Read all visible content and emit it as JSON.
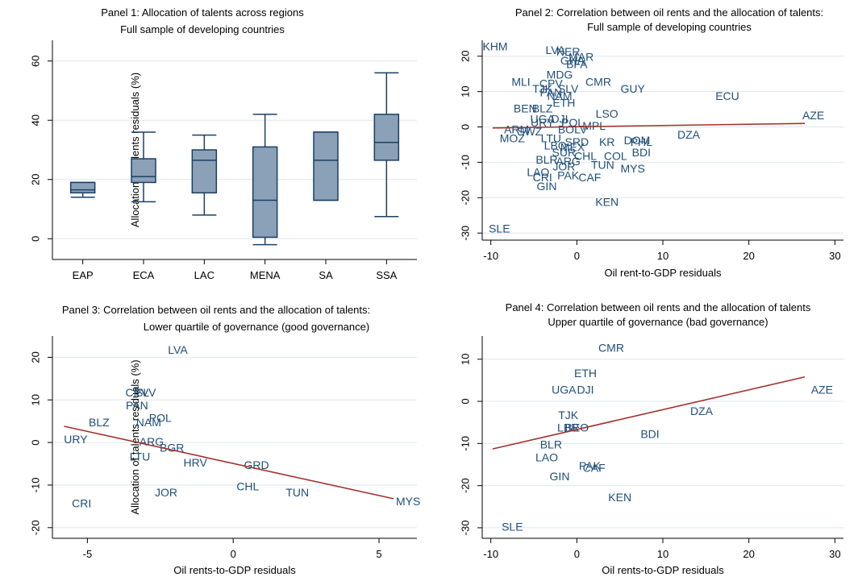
{
  "colors": {
    "background": "#ffffff",
    "grid": "#dfe6ec",
    "axis": "#000000",
    "label": "#1f4e79",
    "box_fill": "#8aa1b8",
    "box_stroke": "#1a3f66",
    "fit_line": "#a3312b"
  },
  "chart_data": [
    {
      "type": "box",
      "title": "Panel 1: Allocation of talents across regions",
      "subtitle": "Full sample of developing countries",
      "xlabel": "",
      "ylabel": "Allocation of talents residuals (%)",
      "ylim": [
        -7,
        67
      ],
      "yticks": [
        0,
        20,
        40,
        60
      ],
      "grid": true,
      "categories": [
        "EAP",
        "ECA",
        "LAC",
        "MENA",
        "SA",
        "SSA"
      ],
      "boxes": [
        {
          "category": "EAP",
          "min": 14,
          "q1": 15.5,
          "median": 16.5,
          "q3": 19,
          "max": 19
        },
        {
          "category": "ECA",
          "min": 12.5,
          "q1": 19,
          "median": 21,
          "q3": 27,
          "max": 36
        },
        {
          "category": "LAC",
          "min": 8,
          "q1": 15.5,
          "median": 26.5,
          "q3": 30,
          "max": 35
        },
        {
          "category": "MENA",
          "min": -2,
          "q1": 0.5,
          "median": 13,
          "q3": 31,
          "max": 42
        },
        {
          "category": "SA",
          "min": 13,
          "q1": 13,
          "median": 26.5,
          "q3": 36,
          "max": 36
        },
        {
          "category": "SSA",
          "min": 7.5,
          "q1": 26.5,
          "median": 32.5,
          "q3": 42,
          "max": 56
        }
      ]
    },
    {
      "type": "scatter",
      "title": "Panel 2: Correlation between oil rents and the allocation of talents:",
      "subtitle": "Full sample of developing countries",
      "xlabel": "Oil rent-to-GDP residuals",
      "ylabel": "",
      "xlim": [
        -11,
        31
      ],
      "ylim": [
        -32,
        24.5
      ],
      "xticks": [
        -10,
        0,
        10,
        20,
        30
      ],
      "yticks": [
        -30,
        -20,
        -10,
        0,
        10,
        20
      ],
      "grid": true,
      "fit_line": [
        [
          -9.8,
          -0.3
        ],
        [
          26.5,
          1.0
        ]
      ],
      "points": [
        {
          "label": "KHM",
          "x": -9.5,
          "y": 22.5
        },
        {
          "label": "LVA",
          "x": -2.5,
          "y": 21.5
        },
        {
          "label": "NER",
          "x": -1,
          "y": 21
        },
        {
          "label": "MAR",
          "x": 0.5,
          "y": 19.5
        },
        {
          "label": "GHA",
          "x": -0.5,
          "y": 18.5
        },
        {
          "label": "BFA",
          "x": 0,
          "y": 17.5
        },
        {
          "label": "MDG",
          "x": -2,
          "y": 14.5
        },
        {
          "label": "MLI",
          "x": -6.5,
          "y": 12.5
        },
        {
          "label": "CPV",
          "x": -3,
          "y": 12
        },
        {
          "label": "CMR",
          "x": 2.5,
          "y": 12.5
        },
        {
          "label": "TJK",
          "x": -4,
          "y": 10.5
        },
        {
          "label": "SLV",
          "x": -1,
          "y": 10.5
        },
        {
          "label": "GUY",
          "x": 6.5,
          "y": 10.5
        },
        {
          "label": "PAN",
          "x": -3,
          "y": 9.5
        },
        {
          "label": "NAM",
          "x": -2,
          "y": 8.5
        },
        {
          "label": "ECU",
          "x": 17.5,
          "y": 8.5
        },
        {
          "label": "ETH",
          "x": -1.5,
          "y": 6.5
        },
        {
          "label": "BEN",
          "x": -6,
          "y": 5
        },
        {
          "label": "BLZ",
          "x": -4,
          "y": 5
        },
        {
          "label": "LSO",
          "x": 3.5,
          "y": 3.5
        },
        {
          "label": "AZE",
          "x": 27.5,
          "y": 3.0
        },
        {
          "label": "UGA",
          "x": -4,
          "y": 2
        },
        {
          "label": "DJI",
          "x": -2,
          "y": 2
        },
        {
          "label": "URY",
          "x": -4,
          "y": 1
        },
        {
          "label": "POL",
          "x": -0.5,
          "y": 1
        },
        {
          "label": "MPL",
          "x": 2,
          "y": 0
        },
        {
          "label": "BOLV",
          "x": -0.5,
          "y": -1
        },
        {
          "label": "ARM",
          "x": -7,
          "y": -1
        },
        {
          "label": "SWZ",
          "x": -5.5,
          "y": -1.5
        },
        {
          "label": "MOZ",
          "x": -7.5,
          "y": -3.5
        },
        {
          "label": "LTU",
          "x": -3,
          "y": -3.5
        },
        {
          "label": "DZA",
          "x": 13,
          "y": -2.5
        },
        {
          "label": "DOM",
          "x": 7,
          "y": -4
        },
        {
          "label": "PHL",
          "x": 7.5,
          "y": -4.5
        },
        {
          "label": "KR",
          "x": 3.5,
          "y": -4.5
        },
        {
          "label": "SRD",
          "x": 0,
          "y": -4.5
        },
        {
          "label": "MEX",
          "x": -0.5,
          "y": -6
        },
        {
          "label": "LBO",
          "x": -2.5,
          "y": -5.5
        },
        {
          "label": "BDI",
          "x": 7.5,
          "y": -7.5
        },
        {
          "label": "SUR",
          "x": -1.5,
          "y": -7.5
        },
        {
          "label": "COL",
          "x": 4.5,
          "y": -8.5
        },
        {
          "label": "CHL",
          "x": 1,
          "y": -8.5
        },
        {
          "label": "BLR",
          "x": -3.5,
          "y": -9.5
        },
        {
          "label": "ARG",
          "x": -1,
          "y": -10
        },
        {
          "label": "TUN",
          "x": 3,
          "y": -11
        },
        {
          "label": "MYS",
          "x": 6.5,
          "y": -12
        },
        {
          "label": "JOR",
          "x": -1.5,
          "y": -11.5
        },
        {
          "label": "LAO",
          "x": -4.5,
          "y": -13
        },
        {
          "label": "CRI",
          "x": -4,
          "y": -14.5
        },
        {
          "label": "PAK",
          "x": -1,
          "y": -14
        },
        {
          "label": "CAF",
          "x": 1.5,
          "y": -14.5
        },
        {
          "label": "GIN",
          "x": -3.5,
          "y": -17
        },
        {
          "label": "KEN",
          "x": 3.5,
          "y": -21.5
        },
        {
          "label": "SLE",
          "x": -9,
          "y": -29
        }
      ]
    },
    {
      "type": "scatter",
      "title": "Panel 3: Correlation between oil rents and the allocation of talents:",
      "subtitle": "Lower quartile of governance (good governance)",
      "xlabel": "Oil rents-to-GDP residuals",
      "ylabel": "Allocation of talents residuals (%)",
      "xlim": [
        -6.2,
        6.3
      ],
      "ylim": [
        -22.5,
        25
      ],
      "xticks": [
        -5,
        0,
        5
      ],
      "yticks": [
        -20,
        -10,
        0,
        10,
        20
      ],
      "grid": true,
      "fit_line": [
        [
          -5.8,
          3.8
        ],
        [
          5.5,
          -13.2
        ]
      ],
      "points": [
        {
          "label": "LVA",
          "x": -1.9,
          "y": 21.5
        },
        {
          "label": "CPV",
          "x": -3.3,
          "y": 11.5
        },
        {
          "label": "SLV",
          "x": -3.0,
          "y": 11.5
        },
        {
          "label": "PAN",
          "x": -3.3,
          "y": 8.5
        },
        {
          "label": "POL",
          "x": -2.5,
          "y": 5.5
        },
        {
          "label": "NAM",
          "x": -2.9,
          "y": 4.5
        },
        {
          "label": "BLZ",
          "x": -4.6,
          "y": 4.5
        },
        {
          "label": "URY",
          "x": -5.4,
          "y": 0.5
        },
        {
          "label": "ARG",
          "x": -2.8,
          "y": 0.0
        },
        {
          "label": "BGR",
          "x": -2.1,
          "y": -1.5
        },
        {
          "label": "LTU",
          "x": -3.2,
          "y": -3.5
        },
        {
          "label": "HRV",
          "x": -1.3,
          "y": -5.0
        },
        {
          "label": "GRD",
          "x": 0.8,
          "y": -5.5
        },
        {
          "label": "CHL",
          "x": 0.5,
          "y": -10.5
        },
        {
          "label": "TUN",
          "x": 2.2,
          "y": -12.0
        },
        {
          "label": "JOR",
          "x": -2.3,
          "y": -12.0
        },
        {
          "label": "MYS",
          "x": 6.0,
          "y": -14.0
        },
        {
          "label": "CRI",
          "x": -5.2,
          "y": -14.5
        }
      ]
    },
    {
      "type": "scatter",
      "title": "Panel 4: Correlation between oil rents and the allocation of talents",
      "subtitle": "Upper quartile of governance (bad governance)",
      "xlabel": "Oil rents-to-GDP residuals",
      "ylabel": "",
      "xlim": [
        -11,
        31
      ],
      "ylim": [
        -32.5,
        15.5
      ],
      "xticks": [
        -10,
        0,
        10,
        20,
        30
      ],
      "yticks": [
        -30,
        -20,
        -10,
        0,
        10
      ],
      "grid": true,
      "fit_line": [
        [
          -9.8,
          -11.3
        ],
        [
          26.5,
          5.8
        ]
      ],
      "points": [
        {
          "label": "CMR",
          "x": 4,
          "y": 12.5
        },
        {
          "label": "ETH",
          "x": 1,
          "y": 6.5
        },
        {
          "label": "UGA",
          "x": -1.5,
          "y": 2.5
        },
        {
          "label": "DJI",
          "x": 1,
          "y": 2.5
        },
        {
          "label": "AZE",
          "x": 28.5,
          "y": 2.5
        },
        {
          "label": "DZA",
          "x": 14.5,
          "y": -2.5
        },
        {
          "label": "TJK",
          "x": -1,
          "y": -3.5
        },
        {
          "label": "LBR",
          "x": -1,
          "y": -6.5
        },
        {
          "label": "BEO",
          "x": 0,
          "y": -6.5
        },
        {
          "label": "BDI",
          "x": 8.5,
          "y": -8.0
        },
        {
          "label": "BLR",
          "x": -3,
          "y": -10.5
        },
        {
          "label": "LAO",
          "x": -3.5,
          "y": -13.5
        },
        {
          "label": "PAK",
          "x": 1.5,
          "y": -15.5
        },
        {
          "label": "CAF",
          "x": 2,
          "y": -16.0
        },
        {
          "label": "GIN",
          "x": -2,
          "y": -18.0
        },
        {
          "label": "KEN",
          "x": 5,
          "y": -23.0
        },
        {
          "label": "SLE",
          "x": -7.5,
          "y": -30.0
        }
      ]
    }
  ]
}
